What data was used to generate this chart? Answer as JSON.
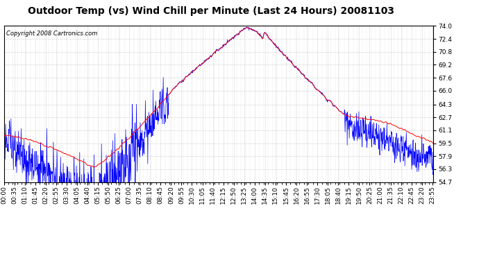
{
  "title": "Outdoor Temp (vs) Wind Chill per Minute (Last 24 Hours) 20081103",
  "copyright_text": "Copyright 2008 Cartronics.com",
  "yticks": [
    54.7,
    56.3,
    57.9,
    59.5,
    61.1,
    62.7,
    64.3,
    66.0,
    67.6,
    69.2,
    70.8,
    72.4,
    74.0
  ],
  "ymin": 54.7,
  "ymax": 74.0,
  "bg_color": "#ffffff",
  "plot_bg_color": "#ffffff",
  "grid_color": "#bbbbbb",
  "line_color_red": "#ff0000",
  "line_color_blue": "#0000ff",
  "title_fontsize": 10,
  "copyright_fontsize": 6,
  "tick_fontsize": 6.5,
  "total_minutes": 1440
}
